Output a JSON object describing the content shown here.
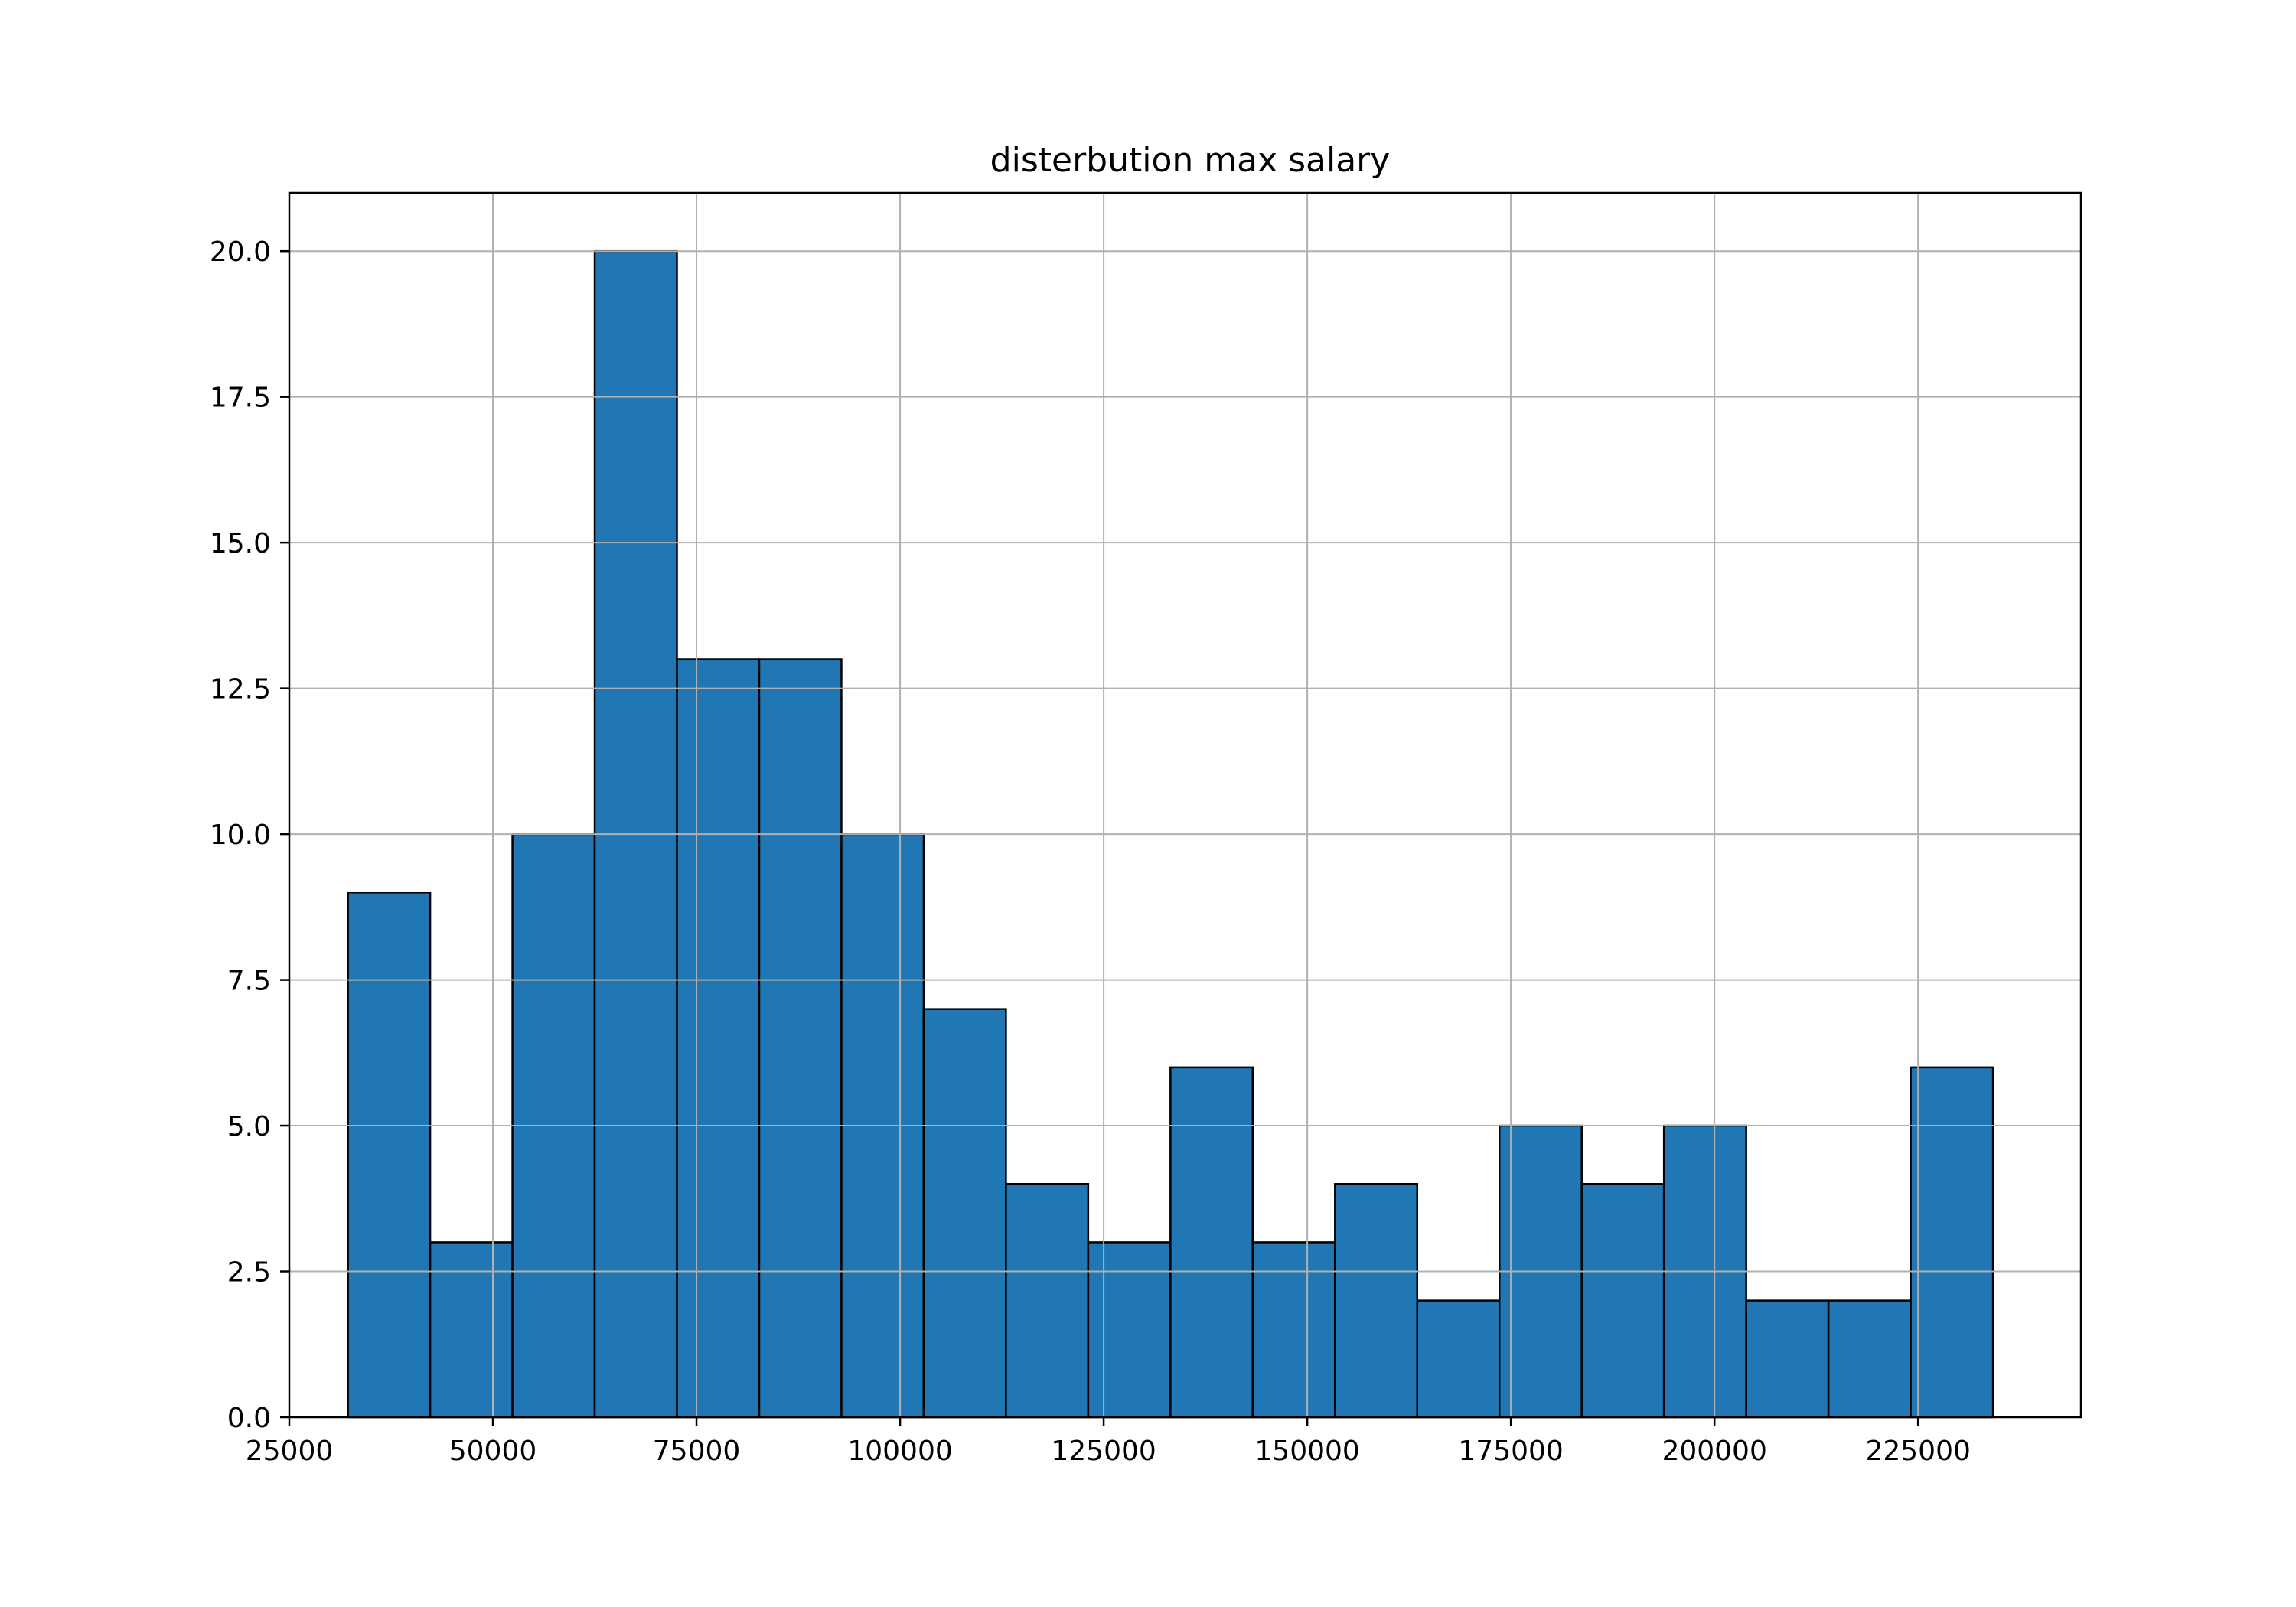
{
  "chart_data": {
    "type": "bar",
    "subtype": "histogram",
    "title": "disterbution max salary",
    "xlabel": "",
    "ylabel": "",
    "bin_edges": [
      32200,
      42300,
      52400,
      62500,
      72600,
      82700,
      92800,
      102900,
      113000,
      123100,
      133200,
      143300,
      153400,
      163500,
      173600,
      183700,
      193800,
      203900,
      214000,
      224100,
      234200
    ],
    "values": [
      9,
      3,
      10,
      20,
      13,
      13,
      10,
      7,
      4,
      3,
      6,
      3,
      4,
      2,
      5,
      4,
      5,
      2,
      2,
      6
    ],
    "xlim": [
      25000,
      245000
    ],
    "ylim": [
      0,
      21
    ],
    "xticks": [
      25000,
      50000,
      75000,
      100000,
      125000,
      150000,
      175000,
      200000,
      225000
    ],
    "xtick_labels": [
      "25000",
      "50000",
      "75000",
      "100000",
      "125000",
      "150000",
      "175000",
      "200000",
      "225000"
    ],
    "yticks": [
      0,
      2.5,
      5,
      7.5,
      10,
      12.5,
      15,
      17.5,
      20
    ],
    "ytick_labels": [
      "0.0",
      "2.5",
      "5.0",
      "7.5",
      "10.0",
      "12.5",
      "15.0",
      "17.5",
      "20.0"
    ],
    "grid": true,
    "legend": "none",
    "bar_color": "#2077b4",
    "edge_color": "#000000",
    "grid_color": "#b0b0b0"
  }
}
